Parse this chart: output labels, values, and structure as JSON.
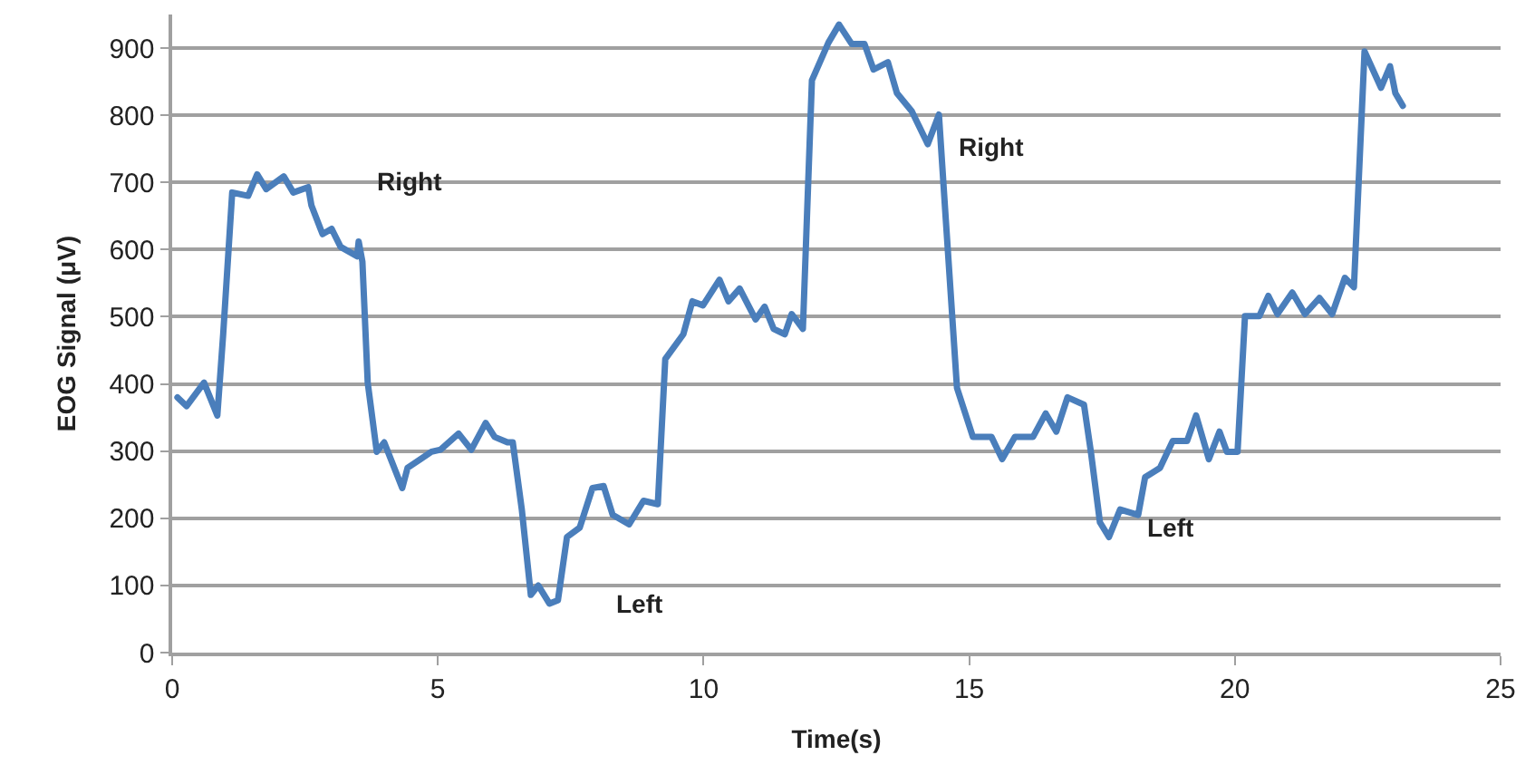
{
  "chart_data": {
    "type": "line",
    "xlabel": "Time(s)",
    "ylabel": "EOG Signal (μV)",
    "xlim": [
      0,
      25
    ],
    "xticks": [
      0,
      5,
      10,
      15,
      20,
      25
    ],
    "ylim": [
      0,
      950
    ],
    "yticks": [
      0,
      100,
      200,
      300,
      400,
      500,
      600,
      700,
      800,
      900
    ],
    "grid": "y",
    "marker": "none",
    "line_style": "solid",
    "annotations": [
      "Right",
      "Left",
      "Right",
      "Left"
    ],
    "series": [
      {
        "color": "#4a7ebb",
        "x": [
          0.1,
          0.27,
          0.6,
          0.85,
          0.96,
          1.13,
          1.43,
          1.6,
          1.77,
          2.1,
          2.28,
          2.56,
          2.62,
          2.83,
          3.0,
          3.17,
          3.48,
          3.51,
          3.58,
          3.68,
          3.85,
          3.99,
          4.33,
          4.43,
          4.88,
          5.05,
          5.39,
          5.63,
          5.9,
          6.07,
          6.31,
          6.41,
          6.58,
          6.75,
          6.89,
          7.1,
          7.26,
          7.43,
          7.67,
          7.91,
          8.12,
          8.29,
          8.6,
          8.87,
          9.14,
          9.28,
          9.62,
          9.79,
          9.99,
          10.3,
          10.47,
          10.68,
          10.98,
          11.15,
          11.32,
          11.53,
          11.66,
          11.87,
          12.04,
          12.35,
          12.55,
          12.79,
          13.03,
          13.2,
          13.47,
          13.64,
          13.92,
          14.22,
          14.43,
          14.56,
          14.77,
          15.07,
          15.42,
          15.62,
          15.86,
          16.2,
          16.44,
          16.64,
          16.85,
          17.16,
          17.29,
          17.46,
          17.63,
          17.84,
          18.18,
          18.31,
          18.59,
          18.83,
          19.1,
          19.27,
          19.51,
          19.71,
          19.85,
          20.05,
          20.19,
          20.46,
          20.63,
          20.8,
          21.08,
          21.32,
          21.59,
          21.83,
          22.07,
          22.24,
          22.44,
          22.75,
          22.92,
          23.02,
          23.16
        ],
        "values": [
          380,
          367,
          402,
          353,
          474,
          685,
          680,
          712,
          690,
          709,
          685,
          693,
          666,
          623,
          631,
          604,
          590,
          612,
          582,
          402,
          299,
          313,
          245,
          275,
          299,
          302,
          326,
          302,
          342,
          321,
          313,
          313,
          213,
          86,
          100,
          73,
          78,
          172,
          186,
          245,
          248,
          205,
          191,
          226,
          221,
          437,
          474,
          523,
          517,
          555,
          523,
          542,
          496,
          515,
          482,
          474,
          504,
          482,
          852,
          908,
          935,
          906,
          906,
          868,
          879,
          833,
          806,
          757,
          801,
          644,
          394,
          321,
          321,
          288,
          321,
          321,
          356,
          329,
          380,
          369,
          299,
          194,
          172,
          213,
          205,
          261,
          275,
          315,
          315,
          353,
          288,
          329,
          299,
          299,
          501,
          501,
          531,
          504,
          536,
          504,
          528,
          504,
          558,
          544,
          895,
          841,
          873,
          833,
          814
        ]
      }
    ]
  }
}
